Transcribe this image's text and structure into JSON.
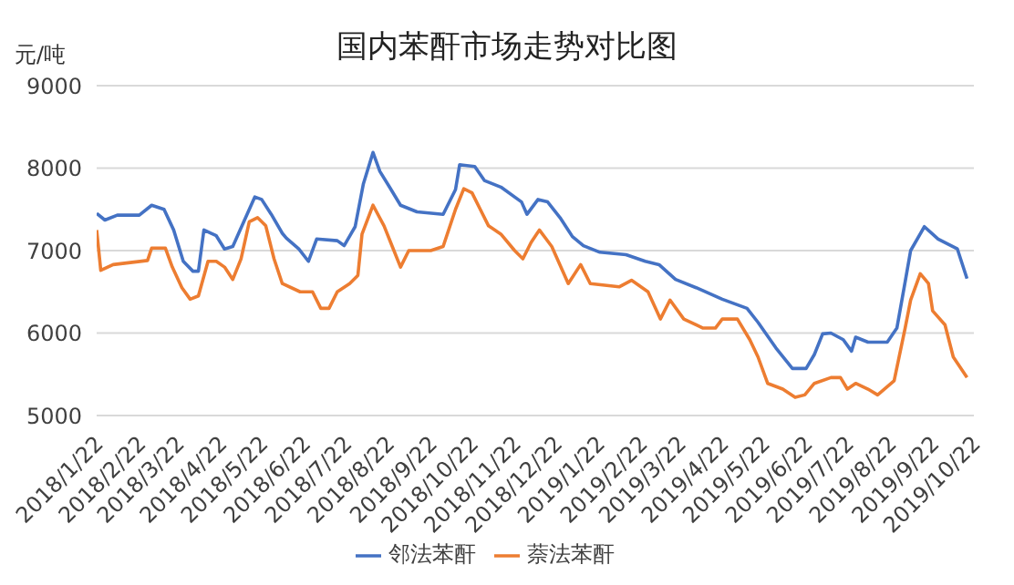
{
  "chart_data": {
    "type": "line",
    "title": "国内苯酐市场走势对比图",
    "ylabel": "元/吨",
    "ylim": [
      5000,
      9000
    ],
    "yticks": [
      5000,
      6000,
      7000,
      8000,
      9000
    ],
    "grid": "y",
    "legend": "bottom",
    "marker": "none",
    "line_style": "solid",
    "xlim": [
      "2018-01-22",
      "2019-10-22"
    ],
    "xticks": [
      {
        "value": "2018-01-22",
        "label": "2018/1/22"
      },
      {
        "value": "2018-02-22",
        "label": "2018/2/22"
      },
      {
        "value": "2018-03-22",
        "label": "2018/3/22"
      },
      {
        "value": "2018-04-22",
        "label": "2018/4/22"
      },
      {
        "value": "2018-05-22",
        "label": "2018/5/22"
      },
      {
        "value": "2018-06-22",
        "label": "2018/6/22"
      },
      {
        "value": "2018-07-22",
        "label": "2018/7/22"
      },
      {
        "value": "2018-08-22",
        "label": "2018/8/22"
      },
      {
        "value": "2018-09-22",
        "label": "2018/9/22"
      },
      {
        "value": "2018-10-22",
        "label": "2018/10/22"
      },
      {
        "value": "2018-11-22",
        "label": "2018/11/22"
      },
      {
        "value": "2018-12-22",
        "label": "2018/12/22"
      },
      {
        "value": "2019-01-22",
        "label": "2019/1/22"
      },
      {
        "value": "2019-02-22",
        "label": "2019/2/22"
      },
      {
        "value": "2019-03-22",
        "label": "2019/3/22"
      },
      {
        "value": "2019-04-22",
        "label": "2019/4/22"
      },
      {
        "value": "2019-05-22",
        "label": "2019/5/22"
      },
      {
        "value": "2019-06-22",
        "label": "2019/6/22"
      },
      {
        "value": "2019-07-22",
        "label": "2019/7/22"
      },
      {
        "value": "2019-08-22",
        "label": "2019/8/22"
      },
      {
        "value": "2019-09-22",
        "label": "2019/9/22"
      },
      {
        "value": "2019-10-22",
        "label": "2019/10/22"
      }
    ],
    "series": [
      {
        "name": "邻法苯酐",
        "color": "#4472c4",
        "x": [
          "2018-01-22",
          "2018-01-28",
          "2018-02-06",
          "2018-02-22",
          "2018-03-03",
          "2018-03-12",
          "2018-03-19",
          "2018-03-26",
          "2018-04-02",
          "2018-04-06",
          "2018-04-10",
          "2018-04-19",
          "2018-04-25",
          "2018-05-01",
          "2018-05-17",
          "2018-05-22",
          "2018-05-29",
          "2018-06-06",
          "2018-06-09",
          "2018-06-18",
          "2018-06-25",
          "2018-07-01",
          "2018-07-16",
          "2018-07-21",
          "2018-07-29",
          "2018-08-04",
          "2018-08-11",
          "2018-08-16",
          "2018-08-23",
          "2018-08-31",
          "2018-09-12",
          "2018-10-01",
          "2018-10-10",
          "2018-10-13",
          "2018-10-24",
          "2018-10-31",
          "2018-11-12",
          "2018-11-27",
          "2018-12-01",
          "2018-12-09",
          "2018-12-16",
          "2018-12-25",
          "2019-01-03",
          "2019-01-11",
          "2019-01-23",
          "2019-02-11",
          "2019-02-25",
          "2019-03-07",
          "2019-03-19",
          "2019-04-03",
          "2019-04-22",
          "2019-05-10",
          "2019-05-18",
          "2019-05-31",
          "2019-06-12",
          "2019-06-22",
          "2019-06-28",
          "2019-07-04",
          "2019-07-10",
          "2019-07-19",
          "2019-07-25",
          "2019-07-28",
          "2019-08-06",
          "2019-08-20",
          "2019-08-27",
          "2019-09-02",
          "2019-09-06",
          "2019-09-16",
          "2019-09-26",
          "2019-10-10",
          "2019-10-17"
        ],
        "values": [
          7450,
          7370,
          7430,
          7430,
          7550,
          7500,
          7250,
          6870,
          6750,
          6750,
          7250,
          7180,
          7020,
          7050,
          7650,
          7620,
          7440,
          7210,
          7150,
          7020,
          6870,
          7140,
          7120,
          7060,
          7290,
          7810,
          8190,
          7960,
          7770,
          7550,
          7470,
          7440,
          7740,
          8040,
          8020,
          7850,
          7770,
          7590,
          7440,
          7620,
          7590,
          7400,
          7170,
          7060,
          6980,
          6950,
          6870,
          6830,
          6650,
          6550,
          6410,
          6300,
          6130,
          5820,
          5570,
          5570,
          5740,
          5990,
          6000,
          5920,
          5780,
          5950,
          5890,
          5890,
          6060,
          6620,
          7000,
          7290,
          7140,
          7020,
          6660
        ]
      },
      {
        "name": "萘法苯酐",
        "color": "#ed7d31",
        "x": [
          "2018-01-22",
          "2018-01-25",
          "2018-02-03",
          "2018-02-28",
          "2018-03-03",
          "2018-03-13",
          "2018-03-18",
          "2018-03-25",
          "2018-03-31",
          "2018-04-06",
          "2018-04-13",
          "2018-04-19",
          "2018-04-25",
          "2018-05-01",
          "2018-05-07",
          "2018-05-13",
          "2018-05-19",
          "2018-05-25",
          "2018-05-31",
          "2018-06-06",
          "2018-06-19",
          "2018-06-28",
          "2018-07-04",
          "2018-07-10",
          "2018-07-16",
          "2018-07-25",
          "2018-07-31",
          "2018-08-03",
          "2018-08-11",
          "2018-08-19",
          "2018-08-25",
          "2018-08-31",
          "2018-09-06",
          "2018-09-22",
          "2018-10-01",
          "2018-10-10",
          "2018-10-16",
          "2018-10-22",
          "2018-10-28",
          "2018-11-03",
          "2018-11-12",
          "2018-11-22",
          "2018-11-28",
          "2018-12-04",
          "2018-12-10",
          "2018-12-19",
          "2018-12-31",
          "2019-01-09",
          "2019-01-16",
          "2019-02-06",
          "2019-02-15",
          "2019-02-27",
          "2019-03-08",
          "2019-03-15",
          "2019-03-25",
          "2019-04-08",
          "2019-04-17",
          "2019-04-22",
          "2019-05-03",
          "2019-05-12",
          "2019-05-18",
          "2019-05-25",
          "2019-06-05",
          "2019-06-14",
          "2019-06-21",
          "2019-06-28",
          "2019-07-10",
          "2019-07-17",
          "2019-07-22",
          "2019-07-28",
          "2019-08-06",
          "2019-08-13",
          "2019-08-25",
          "2019-09-02",
          "2019-09-06",
          "2019-09-13",
          "2019-09-19",
          "2019-09-22",
          "2019-10-01",
          "2019-10-07",
          "2019-10-17"
        ],
        "values": [
          7250,
          6760,
          6830,
          6880,
          7030,
          7030,
          6800,
          6550,
          6410,
          6450,
          6870,
          6870,
          6800,
          6650,
          6900,
          7350,
          7400,
          7300,
          6900,
          6600,
          6500,
          6500,
          6300,
          6300,
          6500,
          6600,
          6700,
          7200,
          7550,
          7300,
          7050,
          6800,
          7000,
          7000,
          7050,
          7500,
          7750,
          7700,
          7500,
          7300,
          7200,
          7000,
          6900,
          7100,
          7250,
          7050,
          6600,
          6830,
          6600,
          6560,
          6640,
          6500,
          6170,
          6400,
          6170,
          6060,
          6060,
          6170,
          6170,
          5920,
          5710,
          5390,
          5320,
          5220,
          5250,
          5390,
          5460,
          5460,
          5320,
          5390,
          5320,
          5250,
          5420,
          6060,
          6400,
          6720,
          6600,
          6270,
          6100,
          5710,
          5460
        ]
      }
    ]
  }
}
